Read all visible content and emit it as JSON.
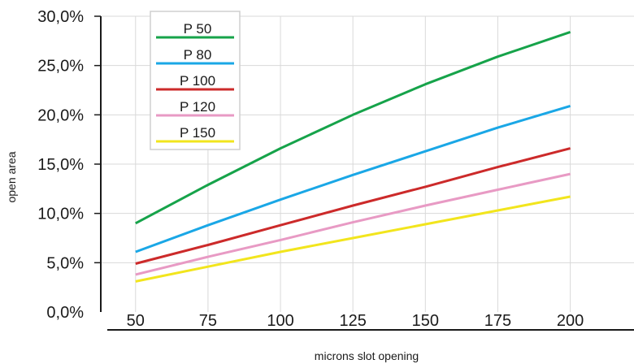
{
  "chart_data": {
    "type": "line",
    "x": [
      50,
      75,
      100,
      125,
      150,
      175,
      200
    ],
    "x_tick_labels": [
      "50",
      "75",
      "100",
      "125",
      "150",
      "175",
      "200"
    ],
    "y_tick_labels": [
      "0,0%",
      "5,0%",
      "10,0%",
      "15,0%",
      "20,0%",
      "25,0%",
      "30,0%"
    ],
    "y_ticks": [
      0,
      5,
      10,
      15,
      20,
      25,
      30
    ],
    "xlabel": "microns slot opening",
    "ylabel": "open area",
    "xlim": [
      38,
      222
    ],
    "ylim": [
      0,
      30
    ],
    "grid": true,
    "legend_position": "top-left",
    "series": [
      {
        "name": "P 50",
        "color": "#16a34a",
        "values": [
          9.0,
          12.9,
          16.6,
          20.0,
          23.1,
          25.9,
          28.4
        ]
      },
      {
        "name": "P 80",
        "color": "#1aa7e6",
        "values": [
          6.1,
          8.8,
          11.4,
          13.9,
          16.3,
          18.7,
          20.9
        ]
      },
      {
        "name": "P 100",
        "color": "#cc2a2a",
        "values": [
          4.9,
          6.8,
          8.8,
          10.8,
          12.7,
          14.7,
          16.6
        ]
      },
      {
        "name": "P 120",
        "color": "#e89ac4",
        "values": [
          3.8,
          5.6,
          7.3,
          9.1,
          10.8,
          12.4,
          14.0
        ]
      },
      {
        "name": "P 150",
        "color": "#f2e51d",
        "values": [
          3.1,
          4.6,
          6.1,
          7.5,
          8.9,
          10.3,
          11.7
        ]
      }
    ]
  }
}
